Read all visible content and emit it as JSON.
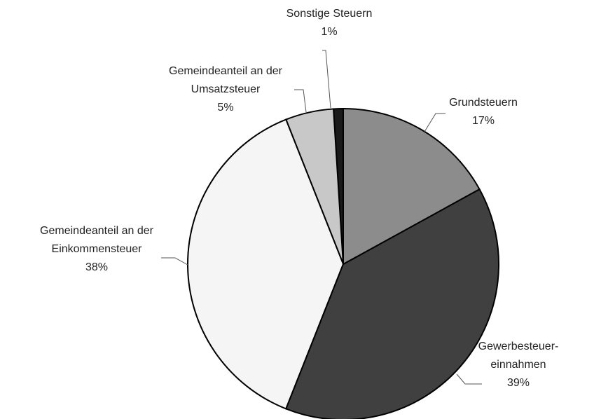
{
  "chart_data": {
    "type": "pie",
    "categories": [
      "Grundsteuern",
      "Gewerbesteuer-\neinnahmen",
      "Gemeindeanteil an der\nEinkommensteuer",
      "Gemeindeanteil an der\nUmsatzsteuer",
      "Sonstige Steuern"
    ],
    "values": [
      17,
      39,
      38,
      5,
      1
    ],
    "value_labels": [
      "17%",
      "39%",
      "38%",
      "5%",
      "1%"
    ],
    "colors": [
      "#8c8c8c",
      "#404040",
      "#f5f5f5",
      "#c8c8c8",
      "#1a1a1a"
    ]
  }
}
